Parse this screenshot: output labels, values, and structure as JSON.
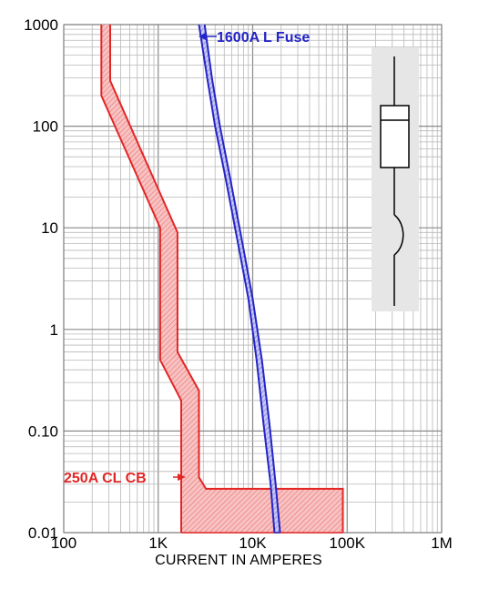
{
  "chart_data": {
    "type": "line",
    "title": "",
    "xlabel": "CURRENT IN AMPERES",
    "ylabel": "",
    "x_scale": "log",
    "y_scale": "log",
    "xlim": [
      100,
      1000000
    ],
    "ylim": [
      0.01,
      1000
    ],
    "x_ticks": [
      {
        "value": 100,
        "label": "100"
      },
      {
        "value": 1000,
        "label": "1K"
      },
      {
        "value": 10000,
        "label": "10K"
      },
      {
        "value": 100000,
        "label": "100K"
      },
      {
        "value": 1000000,
        "label": "1M"
      }
    ],
    "y_ticks": [
      {
        "value": 0.01,
        "label": "0.01"
      },
      {
        "value": 0.1,
        "label": "0.10"
      },
      {
        "value": 1,
        "label": "1"
      },
      {
        "value": 10,
        "label": "10"
      },
      {
        "value": 100,
        "label": "100"
      },
      {
        "value": 1000,
        "label": "1000"
      }
    ],
    "grid": true,
    "series": [
      {
        "name": "250A CL CB",
        "color": "#e32626",
        "fill": "#f7c2c2",
        "band": true,
        "min_curve": [
          [
            250,
            1000
          ],
          [
            250,
            200
          ],
          [
            1050,
            10
          ],
          [
            1050,
            0.5
          ],
          [
            1750,
            0.2
          ],
          [
            1750,
            0.01
          ]
        ],
        "max_curve": [
          [
            310,
            1000
          ],
          [
            310,
            280
          ],
          [
            1600,
            9
          ],
          [
            1600,
            0.6
          ],
          [
            2700,
            0.25
          ],
          [
            2700,
            0.035
          ],
          [
            3200,
            0.027
          ],
          [
            90000,
            0.027
          ],
          [
            90000,
            0.01
          ]
        ]
      },
      {
        "name": "1600A L Fuse",
        "color": "#2424c8",
        "fill": "#c8c8f0",
        "band": true,
        "min_curve": [
          [
            2700,
            1000
          ],
          [
            3300,
            300
          ],
          [
            4000,
            100
          ],
          [
            5200,
            30
          ],
          [
            7000,
            7
          ],
          [
            9000,
            2
          ],
          [
            11000,
            0.5
          ],
          [
            13000,
            0.12
          ],
          [
            15500,
            0.03
          ],
          [
            17000,
            0.01
          ]
        ],
        "max_curve": [
          [
            3100,
            1000
          ],
          [
            3700,
            300
          ],
          [
            4500,
            100
          ],
          [
            5800,
            30
          ],
          [
            7800,
            7
          ],
          [
            10000,
            2
          ],
          [
            12500,
            0.5
          ],
          [
            15000,
            0.12
          ],
          [
            17500,
            0.03
          ],
          [
            19500,
            0.01
          ]
        ]
      }
    ]
  },
  "labels": {
    "breaker": "250A CL CB",
    "fuse": "1600A L Fuse"
  },
  "legend_symbols": {
    "box": "fuse-and-breaker-one-line-symbol",
    "background": "#e6e6e6"
  }
}
